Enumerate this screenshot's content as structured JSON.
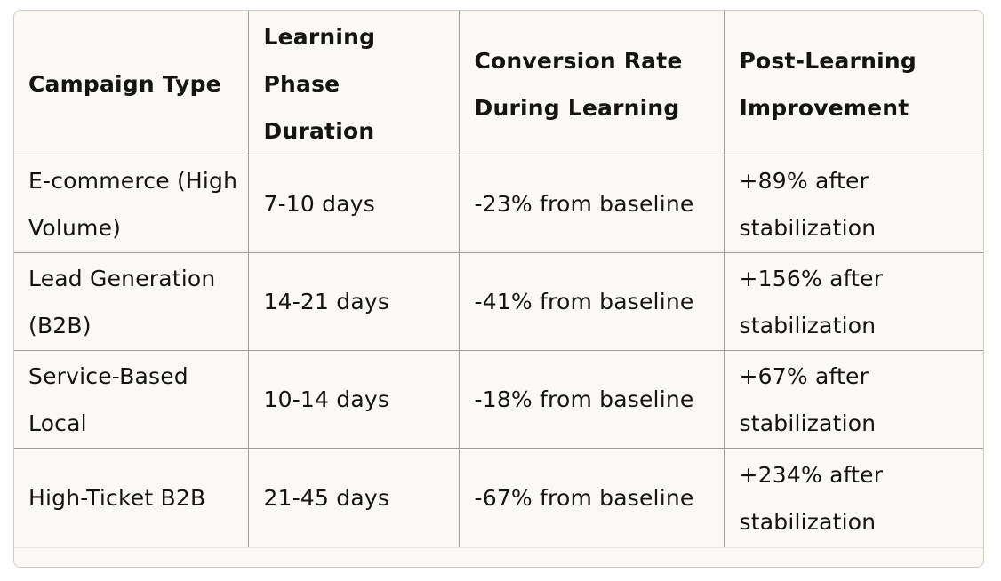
{
  "table": {
    "headers": [
      "Campaign Type",
      "Learning Phase Duration",
      "Conversion Rate During Learning",
      "Post-Learning Improvement"
    ],
    "rows": [
      [
        "E-commerce (High Volume)",
        "7-10 days",
        "-23% from baseline",
        "+89% after stabilization"
      ],
      [
        "Lead Generation (B2B)",
        "14-21 days",
        "-41% from baseline",
        "+156% after stabilization"
      ],
      [
        "Service-Based Local",
        "10-14 days",
        "-18% from baseline",
        "+67% after stabilization"
      ],
      [
        "High-Ticket B2B",
        "21-45 days",
        "-67% from baseline",
        "+234% after stabilization"
      ]
    ]
  }
}
